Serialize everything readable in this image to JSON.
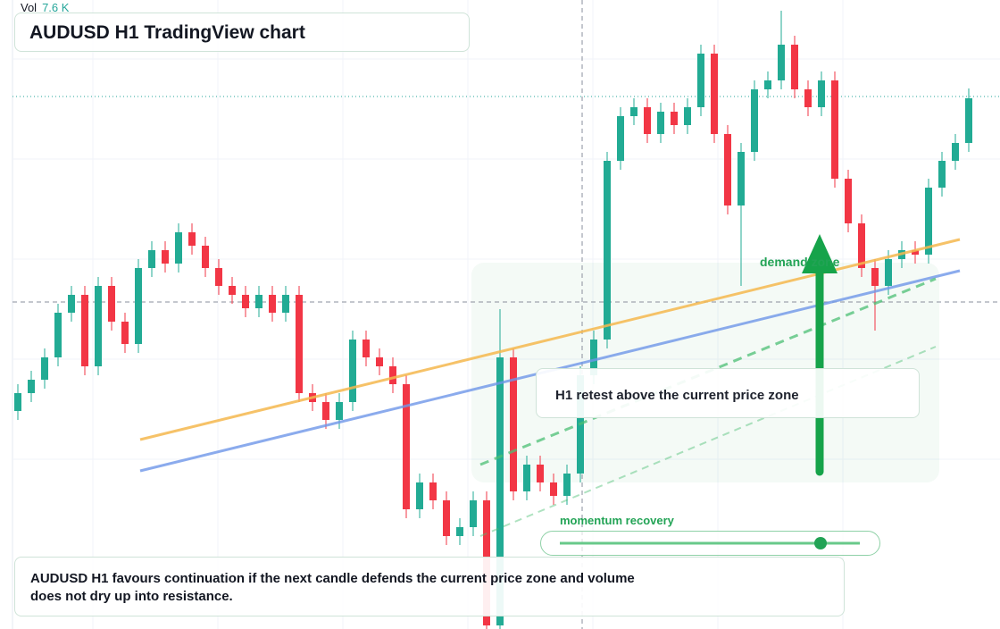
{
  "chart_data": {
    "type": "candlestick",
    "title": "AUDUSD H1 TradingView chart",
    "volume_label": "Vol",
    "volume_value": "7.6 K",
    "annotations": [
      "H1 retest above the current price zone",
      "demand zone",
      "momentum recovery"
    ],
    "caption": "AUDUSD H1 favours continuation if the next candle defends the current price zone and volume does not dry up into resistance.",
    "up_color": "#22ab94",
    "down_color": "#f23645",
    "ylim": [
      0,
      70.4
    ],
    "candles": [
      [
        24.4,
        27.4,
        23.4,
        26.4
      ],
      [
        26.4,
        28.9,
        25.4,
        27.9
      ],
      [
        27.9,
        31.4,
        26.9,
        30.4
      ],
      [
        30.4,
        36.4,
        29.4,
        35.4
      ],
      [
        35.4,
        38.4,
        34.4,
        37.4
      ],
      [
        37.4,
        38.4,
        28.4,
        29.4
      ],
      [
        29.4,
        39.4,
        28.4,
        38.4
      ],
      [
        38.4,
        39.4,
        33.4,
        34.4
      ],
      [
        34.4,
        35.4,
        30.9,
        31.9
      ],
      [
        31.9,
        41.4,
        30.9,
        40.4
      ],
      [
        40.4,
        43.4,
        39.4,
        42.4
      ],
      [
        42.4,
        43.4,
        39.9,
        40.9
      ],
      [
        40.9,
        45.4,
        39.9,
        44.4
      ],
      [
        44.4,
        45.4,
        41.9,
        42.9
      ],
      [
        42.9,
        43.9,
        39.4,
        40.4
      ],
      [
        40.4,
        41.4,
        37.4,
        38.4
      ],
      [
        38.4,
        39.4,
        36.4,
        37.4
      ],
      [
        37.4,
        38.4,
        34.9,
        35.9
      ],
      [
        35.9,
        38.4,
        34.9,
        37.4
      ],
      [
        37.4,
        38.4,
        34.4,
        35.4
      ],
      [
        35.4,
        38.4,
        34.4,
        37.4
      ],
      [
        37.4,
        38.4,
        25.4,
        26.4
      ],
      [
        26.4,
        27.4,
        24.4,
        25.4
      ],
      [
        25.4,
        26.4,
        22.4,
        23.4
      ],
      [
        23.4,
        26.4,
        22.4,
        25.4
      ],
      [
        25.4,
        33.4,
        24.4,
        32.4
      ],
      [
        32.4,
        33.4,
        29.4,
        30.4
      ],
      [
        30.4,
        31.4,
        28.4,
        29.4
      ],
      [
        29.4,
        30.4,
        26.4,
        27.4
      ],
      [
        27.4,
        28.4,
        12.4,
        13.4
      ],
      [
        13.4,
        17.4,
        12.4,
        16.4
      ],
      [
        16.4,
        17.4,
        13.4,
        14.4
      ],
      [
        14.4,
        15.4,
        9.4,
        10.4
      ],
      [
        10.4,
        12.4,
        9.4,
        11.4
      ],
      [
        11.4,
        15.4,
        10.4,
        14.4
      ],
      [
        14.4,
        15.4,
        0,
        0.4
      ],
      [
        0.4,
        35.8,
        0,
        30.4
      ],
      [
        30.4,
        31.4,
        14.4,
        15.4
      ],
      [
        15.4,
        19.4,
        14.4,
        18.4
      ],
      [
        18.4,
        19.4,
        15.4,
        16.4
      ],
      [
        16.4,
        17.4,
        13.9,
        14.9
      ],
      [
        14.9,
        18.4,
        13.9,
        17.4
      ],
      [
        17.4,
        29.4,
        16.4,
        28.4
      ],
      [
        28.4,
        33.4,
        27.4,
        32.4
      ],
      [
        32.4,
        53.4,
        31.4,
        52.4
      ],
      [
        52.4,
        58.4,
        51.4,
        57.4
      ],
      [
        57.4,
        59.4,
        56.4,
        58.4
      ],
      [
        58.4,
        59.4,
        54.4,
        55.4
      ],
      [
        55.4,
        58.9,
        54.4,
        57.9
      ],
      [
        57.9,
        58.9,
        55.4,
        56.4
      ],
      [
        56.4,
        59.4,
        55.4,
        58.4
      ],
      [
        58.4,
        65.4,
        57.4,
        64.4
      ],
      [
        64.4,
        65.4,
        54.4,
        55.4
      ],
      [
        55.4,
        56.4,
        46.4,
        47.4
      ],
      [
        47.4,
        54.4,
        38.4,
        53.4
      ],
      [
        53.4,
        61.4,
        52.4,
        60.4
      ],
      [
        60.4,
        62.4,
        59.4,
        61.4
      ],
      [
        61.4,
        69.2,
        60.4,
        65.4
      ],
      [
        65.4,
        66.4,
        59.4,
        60.4
      ],
      [
        60.4,
        61.4,
        57.4,
        58.4
      ],
      [
        58.4,
        62.4,
        57.4,
        61.4
      ],
      [
        61.4,
        62.4,
        49.4,
        50.4
      ],
      [
        50.4,
        51.4,
        44.4,
        45.4
      ],
      [
        45.4,
        46.4,
        39.4,
        40.4
      ],
      [
        40.4,
        41.4,
        33.4,
        38.4
      ],
      [
        38.4,
        42.4,
        37.4,
        41.4
      ],
      [
        41.4,
        43.4,
        40.4,
        42.4
      ],
      [
        42.4,
        43.4,
        40.9,
        41.9
      ],
      [
        41.9,
        50.4,
        40.9,
        49.4
      ],
      [
        49.4,
        53.4,
        48.4,
        52.4
      ],
      [
        52.4,
        55.4,
        51.4,
        54.4
      ],
      [
        54.4,
        60.5,
        53.4,
        59.4
      ]
    ]
  }
}
